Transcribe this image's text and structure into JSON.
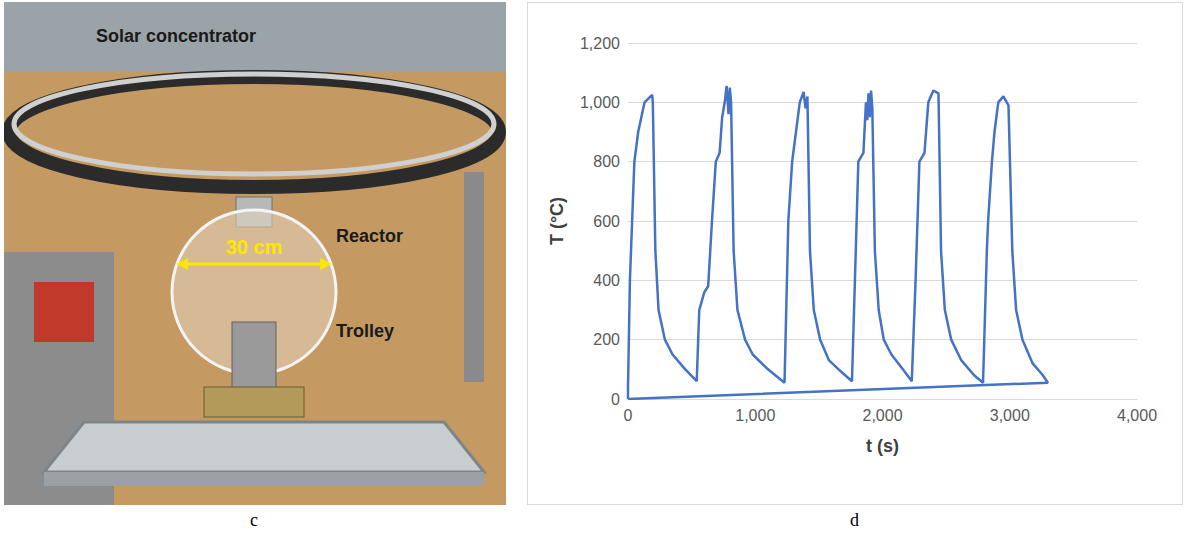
{
  "photo": {
    "panel_label": "c",
    "labels": [
      "Solar concentrator",
      "Reactor",
      "Trolley"
    ],
    "dimension": "30 cm"
  },
  "chart_data": {
    "type": "line",
    "panel_label": "d",
    "x_label": "t (s)",
    "y_label": "T (°C)",
    "color": "#4472c4",
    "grid": true,
    "xlim": [
      0,
      4000
    ],
    "xticks": [
      0,
      1000,
      2000,
      3000,
      4000
    ],
    "ylim": [
      0,
      1200
    ],
    "yticks": [
      0,
      200,
      400,
      600,
      800,
      1000,
      1200
    ],
    "series": [
      {
        "x": [
          0,
          0,
          15,
          50,
          80,
          130,
          190,
          195,
          215,
          240,
          290,
          350,
          450,
          540,
          560,
          600,
          630,
          660,
          690,
          720,
          740,
          760,
          775,
          790,
          800,
          810,
          830,
          860,
          920,
          980,
          1100,
          1230,
          1260,
          1290,
          1320,
          1350,
          1380,
          1395,
          1410,
          1430,
          1460,
          1510,
          1580,
          1680,
          1760,
          1790,
          1810,
          1850,
          1870,
          1880,
          1890,
          1900,
          1910,
          1920,
          1940,
          1970,
          2010,
          2070,
          2160,
          2230,
          2260,
          2290,
          2330,
          2360,
          2400,
          2440,
          2460,
          2490,
          2540,
          2620,
          2720,
          2790,
          2820,
          2830,
          2860,
          2880,
          2910,
          2950,
          2990,
          3020,
          3050,
          3100,
          3180,
          3260,
          3300,
          0
        ],
        "values": [
          0,
          40,
          400,
          800,
          900,
          1000,
          1025,
          1000,
          500,
          300,
          200,
          150,
          100,
          60,
          300,
          360,
          380,
          600,
          800,
          830,
          950,
          1000,
          1055,
          960,
          1050,
          1000,
          500,
          300,
          200,
          150,
          100,
          55,
          600,
          800,
          900,
          1000,
          1035,
          980,
          1020,
          500,
          300,
          200,
          130,
          90,
          60,
          500,
          800,
          830,
          1000,
          940,
          1030,
          950,
          1040,
          980,
          500,
          300,
          200,
          150,
          100,
          60,
          400,
          800,
          830,
          1000,
          1040,
          1030,
          500,
          300,
          200,
          130,
          80,
          55,
          500,
          600,
          800,
          900,
          1000,
          1020,
          990,
          500,
          300,
          200,
          120,
          80,
          55,
          0
        ]
      }
    ]
  }
}
